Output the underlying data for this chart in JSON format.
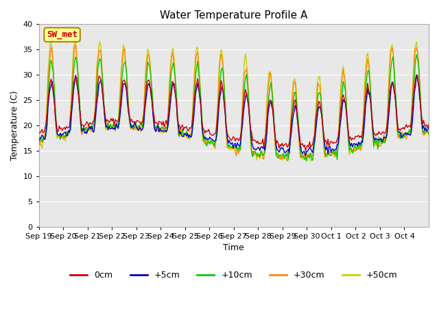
{
  "title": "Water Temperature Profile A",
  "xlabel": "Time",
  "ylabel": "Temperature (C)",
  "ylim": [
    0,
    40
  ],
  "yticks": [
    0,
    5,
    10,
    15,
    20,
    25,
    30,
    35,
    40
  ],
  "x_labels": [
    "Sep 19",
    "Sep 20",
    "Sep 21",
    "Sep 22",
    "Sep 23",
    "Sep 24",
    "Sep 25",
    "Sep 26",
    "Sep 27",
    "Sep 28",
    "Sep 29",
    "Sep 30",
    "Oct 1",
    "Oct 2",
    "Oct 3",
    "Oct 4"
  ],
  "series_colors": [
    "#cc0000",
    "#0000cc",
    "#00cc00",
    "#ff8800",
    "#cccc00"
  ],
  "series_labels": [
    "0cm",
    "+5cm",
    "+10cm",
    "+30cm",
    "+50cm"
  ],
  "background_color": "#e8e8e8",
  "annotation_text": "SW_met",
  "annotation_color": "#cc0000",
  "annotation_bg": "#ffff99",
  "annotation_border": "#aa8800"
}
